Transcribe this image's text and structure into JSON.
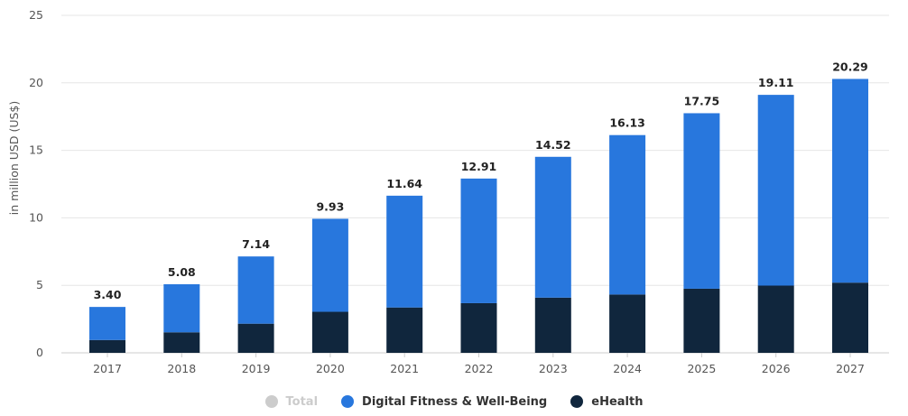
{
  "chart_data": {
    "type": "bar",
    "stacked": true,
    "categories": [
      "2017",
      "2018",
      "2019",
      "2020",
      "2021",
      "2022",
      "2023",
      "2024",
      "2025",
      "2026",
      "2027"
    ],
    "series": [
      {
        "name": "eHealth",
        "color": "#10263d",
        "values": [
          0.95,
          1.52,
          2.16,
          3.04,
          3.36,
          3.68,
          4.09,
          4.32,
          4.75,
          4.98,
          5.2
        ]
      },
      {
        "name": "Digital Fitness & Well-Being",
        "color": "#2877dd",
        "values": [
          2.45,
          3.56,
          4.98,
          6.89,
          8.28,
          9.23,
          10.43,
          11.81,
          13.0,
          14.13,
          15.09
        ]
      }
    ],
    "totals": [
      "3.40",
      "5.08",
      "7.14",
      "9.93",
      "11.64",
      "12.91",
      "14.52",
      "16.13",
      "17.75",
      "19.11",
      "20.29"
    ],
    "ylabel": "in million USD (US$)",
    "ylim": [
      0,
      25
    ],
    "yticks": [
      "0",
      "5",
      "10",
      "15",
      "20",
      "25"
    ],
    "grid": true
  },
  "legend": {
    "items": [
      {
        "label": "Total",
        "color": "#cccccc",
        "active": false
      },
      {
        "label": "Digital Fitness & Well-Being",
        "color": "#2877dd",
        "active": true
      },
      {
        "label": "eHealth",
        "color": "#10263d",
        "active": true
      }
    ]
  }
}
